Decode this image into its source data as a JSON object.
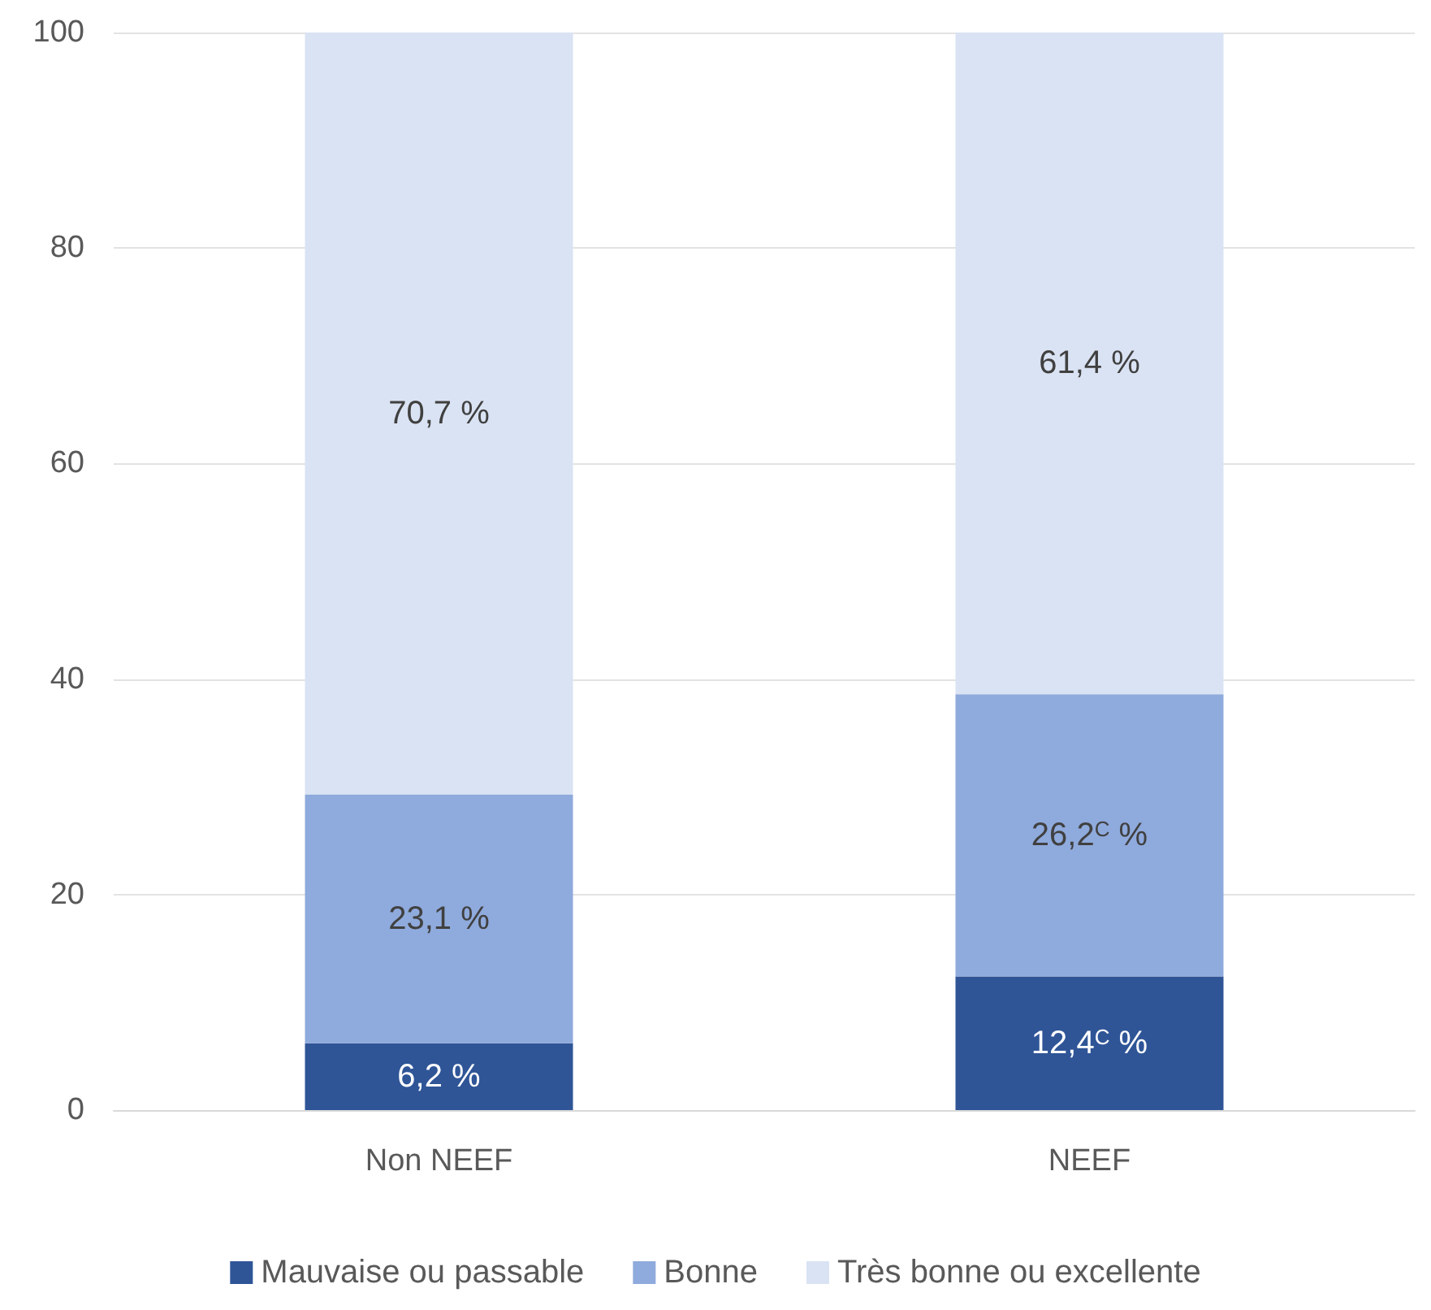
{
  "chart_data": {
    "type": "bar",
    "stacked": true,
    "categories": [
      "Non NEEF",
      "NEEF"
    ],
    "series": [
      {
        "name": "Mauvaise ou passable",
        "color": "#2f5597",
        "values": [
          6.2,
          12.4
        ],
        "value_labels": [
          "6,2 %",
          "12,4$^{C}$ %"
        ]
      },
      {
        "name": "Bonne",
        "color": "#8faadc",
        "values": [
          23.1,
          26.2
        ],
        "value_labels": [
          "23,1 %",
          "26,2$^{C}$ %"
        ]
      },
      {
        "name": "Très bonne ou excellente",
        "color": "#dae3f3",
        "values": [
          70.7,
          61.4
        ],
        "value_labels": [
          "70,7 %",
          "61,4 %"
        ]
      }
    ],
    "ylim": [
      0,
      100
    ],
    "yticks": [
      0,
      20,
      40,
      60,
      80,
      100
    ],
    "grid": "y",
    "legend": "bottom"
  }
}
